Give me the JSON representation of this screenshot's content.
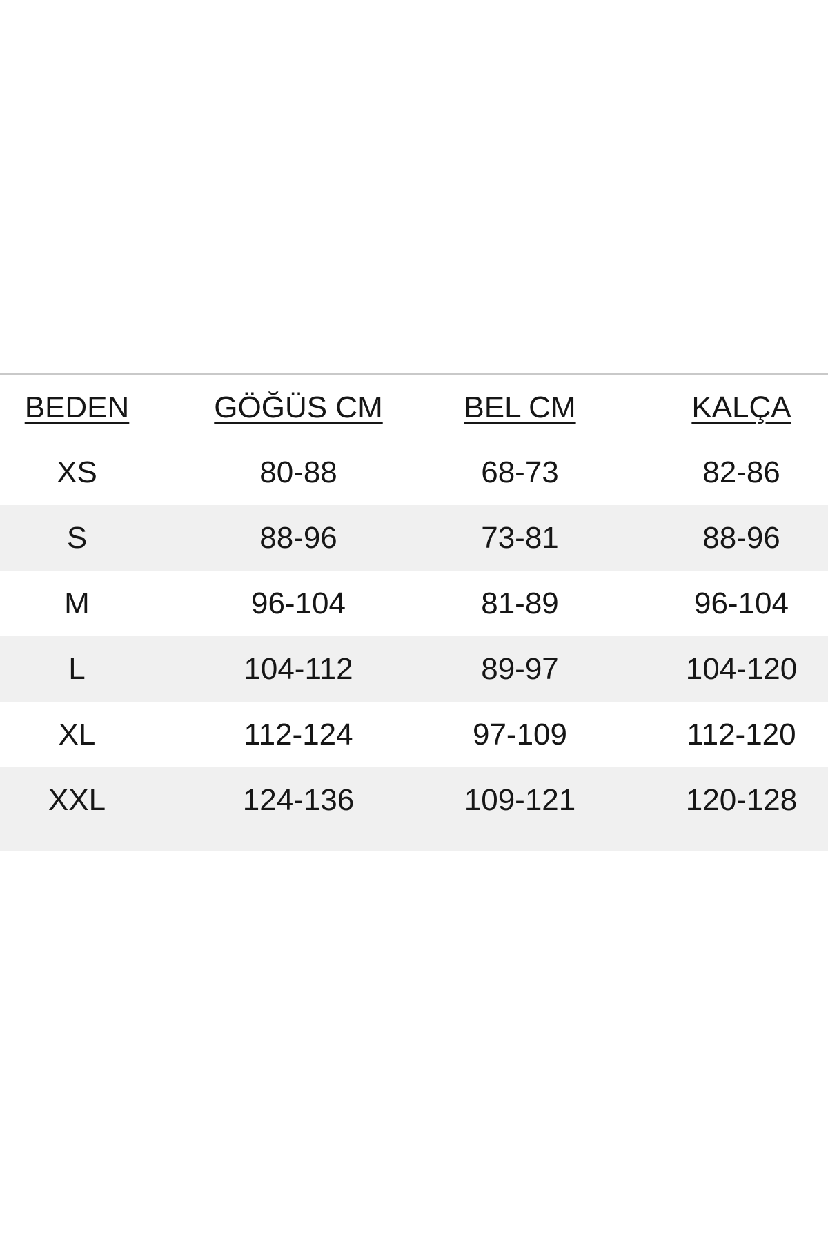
{
  "table": {
    "columns": [
      {
        "label": "BEDEN"
      },
      {
        "label": "GÖĞÜS CM"
      },
      {
        "label": "BEL CM"
      },
      {
        "label": "KALÇA"
      }
    ],
    "rows": [
      {
        "size": "XS",
        "chest": "80-88",
        "waist": "68-73",
        "hip": "82-86"
      },
      {
        "size": "S",
        "chest": "88-96",
        "waist": "73-81",
        "hip": "88-96"
      },
      {
        "size": "M",
        "chest": "96-104",
        "waist": "81-89",
        "hip": "96-104"
      },
      {
        "size": "L",
        "chest": "104-112",
        "waist": "89-97",
        "hip": "104-120"
      },
      {
        "size": "XL",
        "chest": "112-124",
        "waist": "97-109",
        "hip": "112-120"
      },
      {
        "size": "XXL",
        "chest": "124-136",
        "waist": "109-121",
        "hip": "120-128"
      }
    ],
    "colors": {
      "stripe": "#f0f0f0",
      "top_border": "#c9c9c9",
      "text": "#161616"
    }
  }
}
